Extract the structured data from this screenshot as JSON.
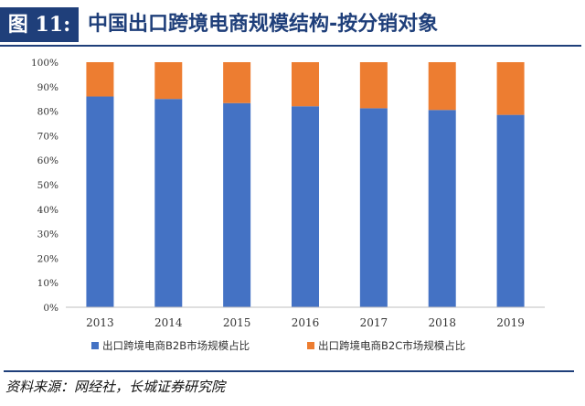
{
  "header": {
    "figure_label": "图 11:",
    "title": "中国出口跨境电商规模结构-按分销对象"
  },
  "source": "资料来源：网经社，长城证券研究院",
  "colors": {
    "b2b": "#4472c4",
    "b2c": "#ed7d31",
    "header_blue": "#1f3f7a"
  },
  "chart_data": {
    "type": "bar",
    "stacked": true,
    "percent": true,
    "categories": [
      "2013",
      "2014",
      "2015",
      "2016",
      "2017",
      "2018",
      "2019"
    ],
    "series": [
      {
        "name": "出口跨境电商B2B市场规模占比",
        "values": [
          86.0,
          85.0,
          83.3,
          82.0,
          81.2,
          80.5,
          78.5
        ]
      },
      {
        "name": "出口跨境电商B2C市场规模占比",
        "values": [
          14.0,
          15.0,
          16.7,
          18.0,
          18.8,
          19.5,
          21.5
        ]
      }
    ],
    "ylim": [
      0,
      100
    ],
    "yticks": [
      "0%",
      "10%",
      "20%",
      "30%",
      "40%",
      "50%",
      "60%",
      "70%",
      "80%",
      "90%",
      "100%"
    ],
    "legend_position": "bottom",
    "grid": false
  }
}
